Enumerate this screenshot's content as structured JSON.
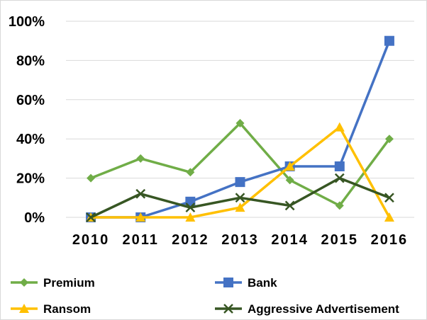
{
  "chart_data": {
    "type": "line",
    "title": "",
    "xlabel": "",
    "ylabel": "",
    "x": [
      "2010",
      "2011",
      "2012",
      "2013",
      "2014",
      "2015",
      "2016"
    ],
    "y_ticks": [
      "0%",
      "20%",
      "40%",
      "60%",
      "80%",
      "100%"
    ],
    "ylim": [
      0,
      100
    ],
    "y_unit": "percent",
    "grid": "horizontal",
    "legend_position": "bottom",
    "series": [
      {
        "name": "Premium",
        "color": "#70AD47",
        "marker": "diamond",
        "values": [
          20,
          30,
          23,
          48,
          19,
          6,
          40
        ]
      },
      {
        "name": "Bank",
        "color": "#4472C4",
        "marker": "square",
        "values": [
          0,
          0,
          8,
          18,
          26,
          26,
          90
        ]
      },
      {
        "name": "Ransom",
        "color": "#FFC000",
        "marker": "triangle",
        "values": [
          0,
          0,
          0,
          5,
          26,
          46,
          0
        ]
      },
      {
        "name": "Aggressive Advertisement",
        "color": "#375623",
        "marker": "x",
        "values": [
          0,
          12,
          5,
          10,
          6,
          20,
          10
        ]
      }
    ]
  }
}
